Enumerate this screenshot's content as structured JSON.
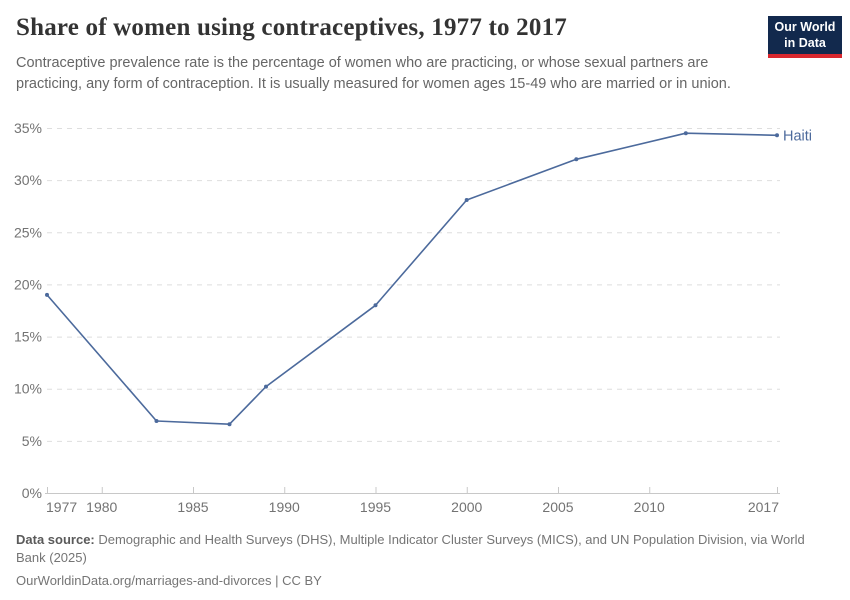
{
  "header": {
    "title": "Share of women using contraceptives, 1977 to 2017",
    "subtitle": "Contraceptive prevalence rate is the percentage of women who are practicing, or whose sexual partners are practicing, any form of contraception. It is usually measured for women ages 15-49 who are married or in union.",
    "logo": {
      "line1": "Our World",
      "line2": "in Data",
      "bg_color": "#12294d",
      "accent_color": "#d9272e"
    }
  },
  "chart_data": {
    "type": "line",
    "title": "Share of women using contraceptives, 1977 to 2017",
    "xlabel": "",
    "ylabel": "",
    "xlim": [
      1977,
      2017
    ],
    "ylim": [
      0,
      35
    ],
    "x_ticks": [
      1977,
      1980,
      1985,
      1990,
      1995,
      2000,
      2005,
      2010,
      2017
    ],
    "y_ticks": [
      0,
      5,
      10,
      15,
      20,
      25,
      30,
      35
    ],
    "y_tick_suffix": "%",
    "grid": "horizontal-dashed",
    "legend_position": "end-of-line-label",
    "series": [
      {
        "name": "Haiti",
        "color": "#4C6A9C",
        "x": [
          1977,
          1983,
          1987,
          1989,
          1995,
          2000,
          2006,
          2012,
          2017
        ],
        "values": [
          19.0,
          6.9,
          6.6,
          10.2,
          18.0,
          28.1,
          32.0,
          34.5,
          34.3
        ]
      }
    ],
    "end_label": "Haiti"
  },
  "footer": {
    "datasource_label": "Data source:",
    "datasource_text": " Demographic and Health Surveys (DHS), Multiple Indicator Cluster Surveys (MICS), and UN Population Division, via World Bank (2025)",
    "link_text": "OurWorldinData.org/marriages-and-divorces | CC BY"
  },
  "colors": {
    "grid_line": "#dedede",
    "axis_line": "#c8c8c8",
    "tick_label": "#737373",
    "title_text": "#333333",
    "subtitle_text": "#666666",
    "footer_text": "#757575"
  }
}
